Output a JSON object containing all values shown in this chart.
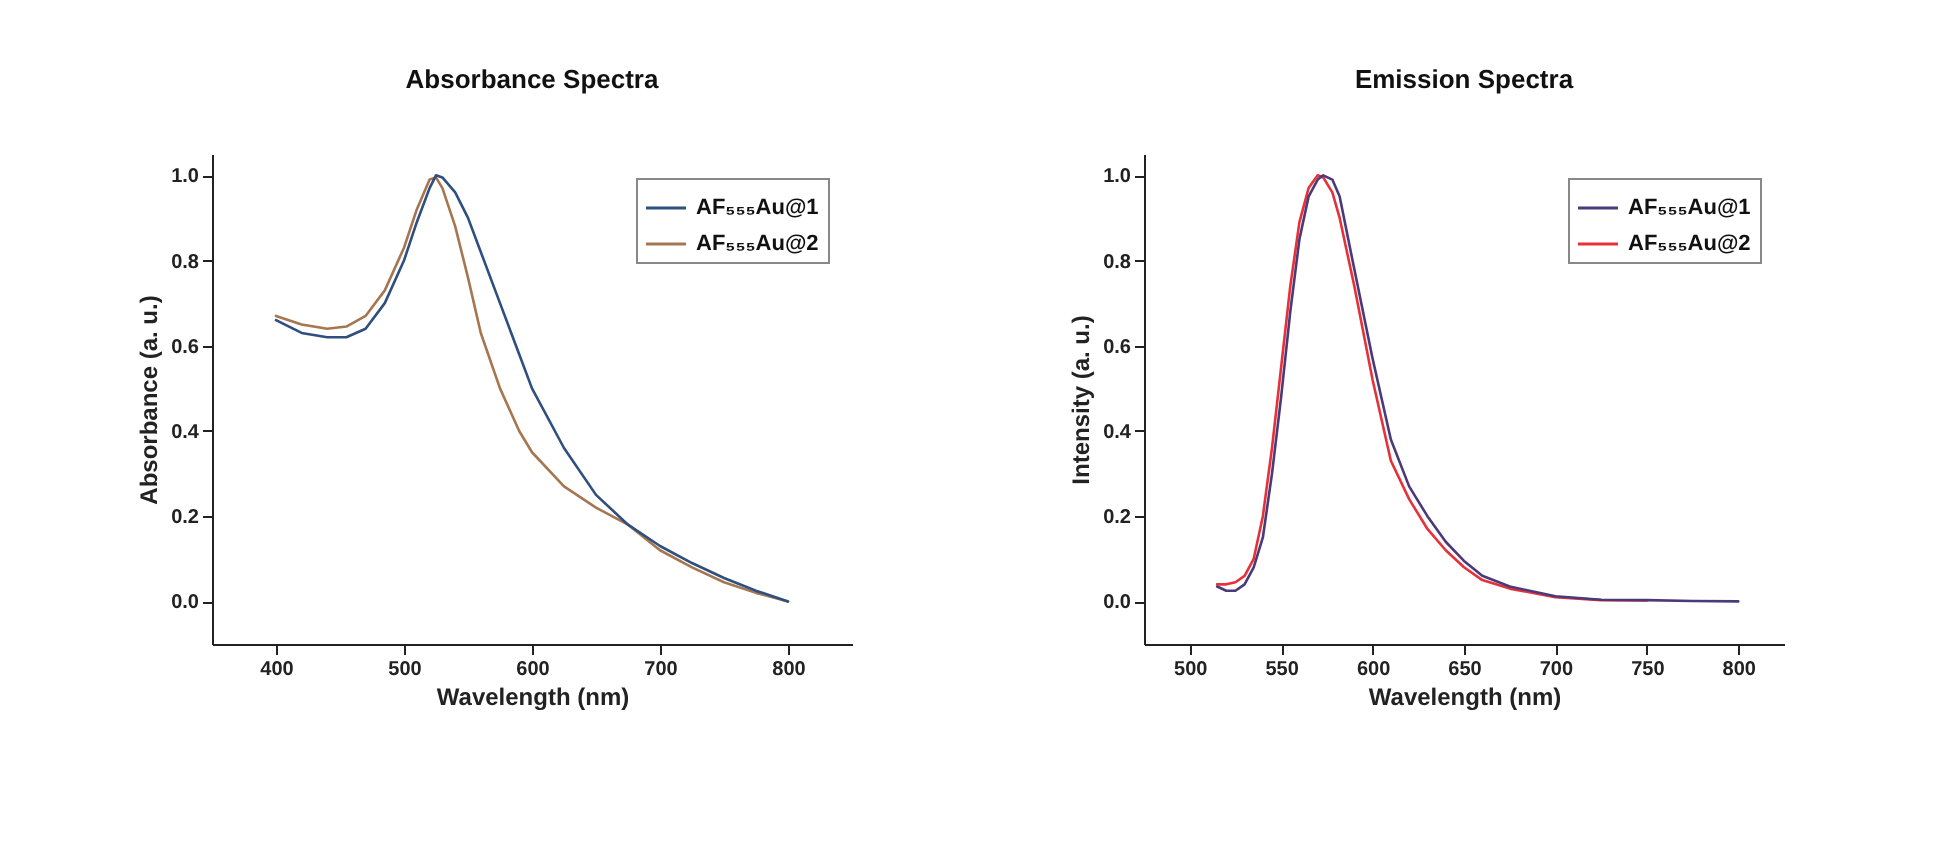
{
  "chart_data": [
    {
      "type": "line",
      "title": "Absorbance Spectra",
      "xlabel": "Wavelength (nm)",
      "ylabel": "Absorbance (a. u.)",
      "xlim": [
        350,
        850
      ],
      "xticks": [
        400,
        500,
        600,
        700,
        800
      ],
      "ylim": [
        -0.1,
        1.05
      ],
      "yticks": [
        {
          "value": 0,
          "label": "0.0"
        },
        {
          "value": 0.2,
          "label": "0.2"
        },
        {
          "value": 0.4,
          "label": "0.4"
        },
        {
          "value": 0.6,
          "label": "0.6"
        },
        {
          "value": 0.8,
          "label": "0.8"
        },
        {
          "value": 1,
          "label": "1.0"
        }
      ],
      "grid": false,
      "legend": "top right",
      "marker": "none",
      "line_style": "solid",
      "x": [
        400,
        420,
        440,
        455,
        470,
        485,
        500,
        510,
        520,
        525,
        530,
        540,
        550,
        560,
        575,
        590,
        600,
        625,
        650,
        675,
        700,
        725,
        750,
        775,
        800
      ],
      "series": [
        {
          "name": "AF₅₅₅Au@1",
          "color": "#2f4f7f",
          "values": [
            0.66,
            0.63,
            0.62,
            0.62,
            0.64,
            0.7,
            0.8,
            0.89,
            0.97,
            1.0,
            0.995,
            0.96,
            0.9,
            0.82,
            0.7,
            0.58,
            0.5,
            0.36,
            0.25,
            0.18,
            0.13,
            0.09,
            0.055,
            0.025,
            0.0
          ]
        },
        {
          "name": "AF₅₅₅Au@2",
          "color": "#a57650",
          "values": [
            0.67,
            0.65,
            0.64,
            0.645,
            0.67,
            0.73,
            0.83,
            0.92,
            0.99,
            0.995,
            0.97,
            0.88,
            0.76,
            0.63,
            0.5,
            0.4,
            0.35,
            0.27,
            0.22,
            0.18,
            0.12,
            0.08,
            0.045,
            0.02,
            0.0
          ]
        }
      ]
    },
    {
      "type": "line",
      "title": "Emission Spectra",
      "xlabel": "Wavelength (nm)",
      "ylabel": "Intensity (a. u.)",
      "xlim": [
        475,
        825
      ],
      "xticks": [
        500,
        550,
        600,
        650,
        700,
        750,
        800
      ],
      "ylim": [
        -0.1,
        1.05
      ],
      "yticks": [
        {
          "value": 0,
          "label": "0.0"
        },
        {
          "value": 0.2,
          "label": "0.2"
        },
        {
          "value": 0.4,
          "label": "0.4"
        },
        {
          "value": 0.6,
          "label": "0.6"
        },
        {
          "value": 0.8,
          "label": "0.8"
        },
        {
          "value": 1,
          "label": "1.0"
        }
      ],
      "grid": false,
      "legend": "top right",
      "marker": "none",
      "line_style": "solid",
      "x": [
        515,
        520,
        525,
        530,
        535,
        540,
        545,
        550,
        555,
        560,
        565,
        570,
        573,
        578,
        582,
        590,
        600,
        610,
        620,
        630,
        640,
        650,
        660,
        675,
        700,
        725,
        750,
        775,
        800
      ],
      "series": [
        {
          "name": "AF₅₅₅Au@1",
          "color": "#4b3a7a",
          "values": [
            0.035,
            0.025,
            0.025,
            0.04,
            0.08,
            0.15,
            0.3,
            0.48,
            0.68,
            0.85,
            0.95,
            0.99,
            1.0,
            0.99,
            0.95,
            0.78,
            0.57,
            0.38,
            0.27,
            0.2,
            0.14,
            0.095,
            0.06,
            0.035,
            0.012,
            0.004,
            0.003,
            0.001,
            0.0
          ]
        },
        {
          "name": "AF₅₅₅Au@2",
          "color": "#e8303a",
          "values": [
            0.04,
            0.04,
            0.045,
            0.06,
            0.1,
            0.2,
            0.36,
            0.55,
            0.74,
            0.89,
            0.97,
            1.0,
            0.995,
            0.96,
            0.9,
            0.74,
            0.52,
            0.33,
            0.24,
            0.17,
            0.12,
            0.08,
            0.05,
            0.03,
            0.01,
            0.003,
            0.002,
            null,
            null
          ]
        }
      ]
    }
  ]
}
